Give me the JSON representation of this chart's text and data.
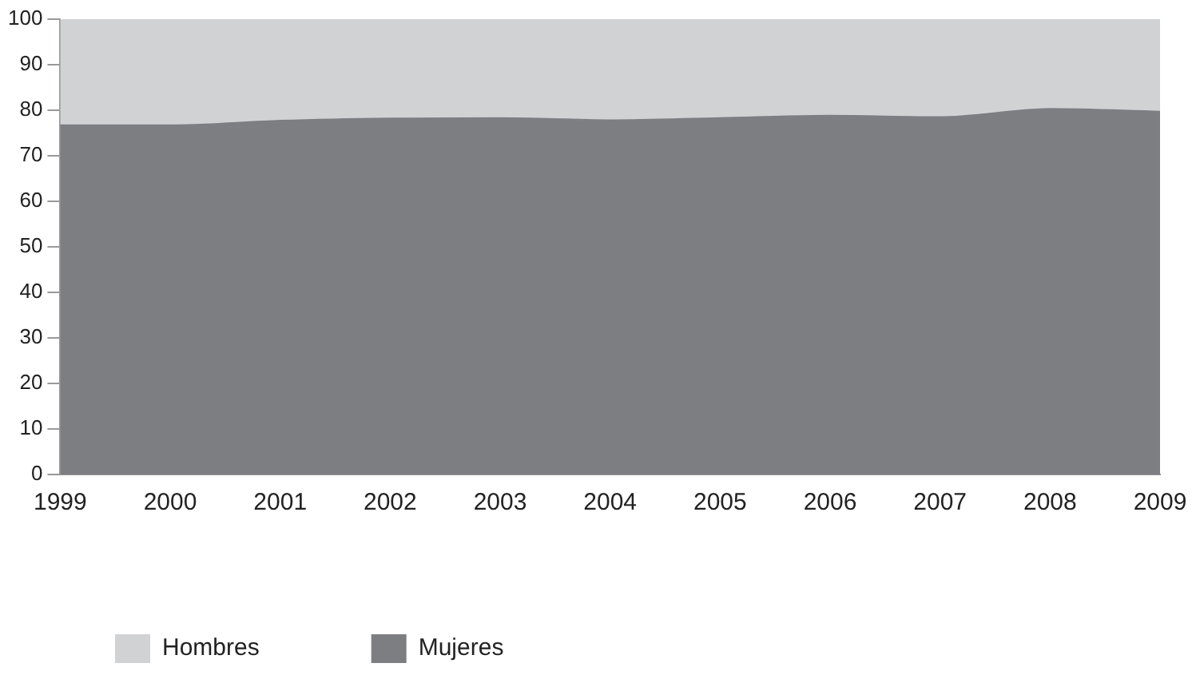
{
  "chart_data": {
    "type": "area",
    "stacked": true,
    "categories": [
      "1999",
      "2000",
      "2001",
      "2002",
      "2003",
      "2004",
      "2005",
      "2006",
      "2007",
      "2008",
      "2009"
    ],
    "series": [
      {
        "name": "Mujeres",
        "color": "#7d7e82",
        "values": [
          76.7,
          76.7,
          77.7,
          78.2,
          78.3,
          77.8,
          78.3,
          78.8,
          78.5,
          80.3,
          79.7
        ]
      },
      {
        "name": "Hombres",
        "color": "#d1d2d4",
        "values": [
          23.3,
          23.3,
          22.3,
          21.8,
          21.7,
          22.2,
          21.7,
          21.2,
          21.5,
          19.7,
          20.3
        ]
      }
    ],
    "ylim": [
      0,
      100
    ],
    "yticks": [
      0,
      10,
      20,
      30,
      40,
      50,
      60,
      70,
      80,
      90,
      100
    ],
    "grid": false,
    "legend": "bottom"
  }
}
